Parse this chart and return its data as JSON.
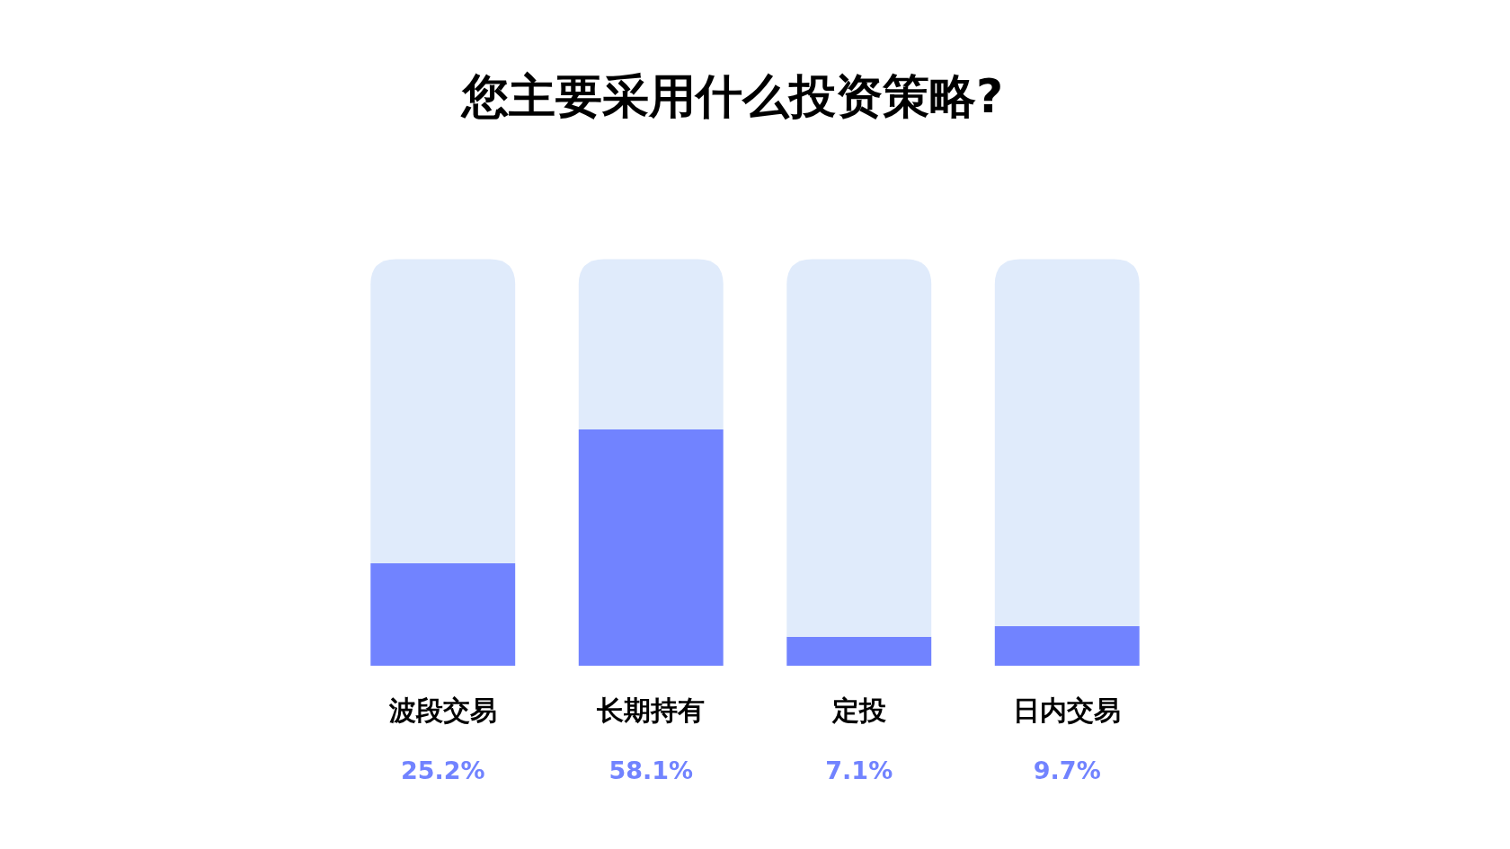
{
  "chart_data": {
    "type": "bar",
    "title": "您主要采用什么投资策略?",
    "categories": [
      "波段交易",
      "长期持有",
      "定投",
      "日内交易"
    ],
    "stacked": true,
    "ylim": [
      0,
      100
    ],
    "tick_labels": "x",
    "series": [
      {
        "color": "#7183ff",
        "values": [
          25.2,
          58.1,
          7.1,
          9.7
        ],
        "value_labels": [
          "25.2%",
          "58.1%",
          "7.1%",
          "9.7%"
        ]
      },
      {
        "color": "#e0ebfb",
        "values": [
          74.8,
          41.9,
          92.9,
          90.3
        ]
      }
    ]
  }
}
